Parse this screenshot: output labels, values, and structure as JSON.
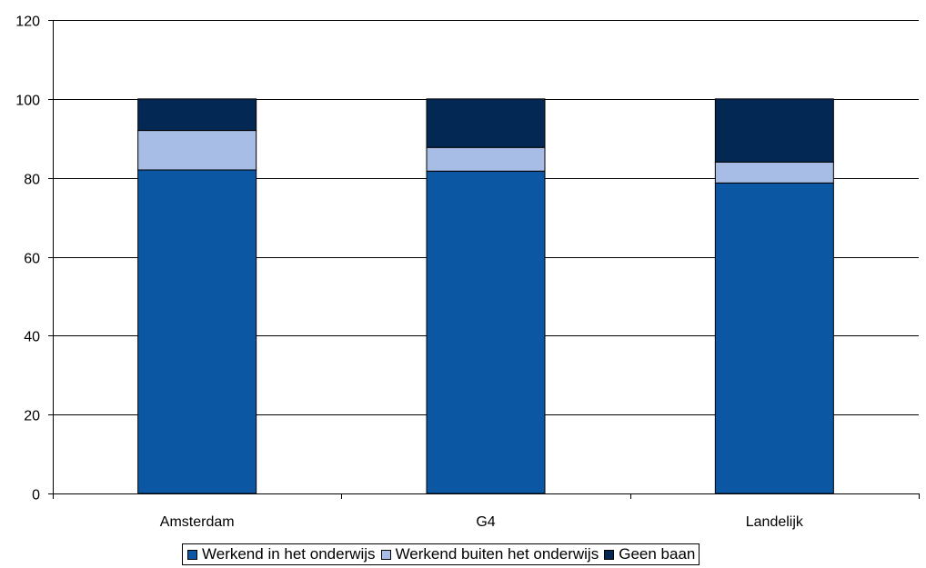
{
  "chart_data": {
    "type": "bar",
    "stacked": true,
    "categories": [
      "Amsterdam",
      "G4",
      "Landelijk"
    ],
    "series": [
      {
        "name": "Werkend in het onderwijs",
        "color": "#0c57a3",
        "values": [
          82,
          81.7,
          78.7
        ]
      },
      {
        "name": "Werkend buiten het onderwijs",
        "color": "#a7bde6",
        "values": [
          10,
          6,
          5.3
        ]
      },
      {
        "name": "Geen baan",
        "color": "#032853",
        "values": [
          8,
          12.3,
          16
        ]
      }
    ],
    "ylim": [
      0,
      120
    ],
    "yticks": [
      0,
      20,
      40,
      60,
      80,
      100,
      120
    ],
    "grid": true,
    "legend_position": "bottom",
    "title": "",
    "xlabel": "",
    "ylabel": ""
  }
}
